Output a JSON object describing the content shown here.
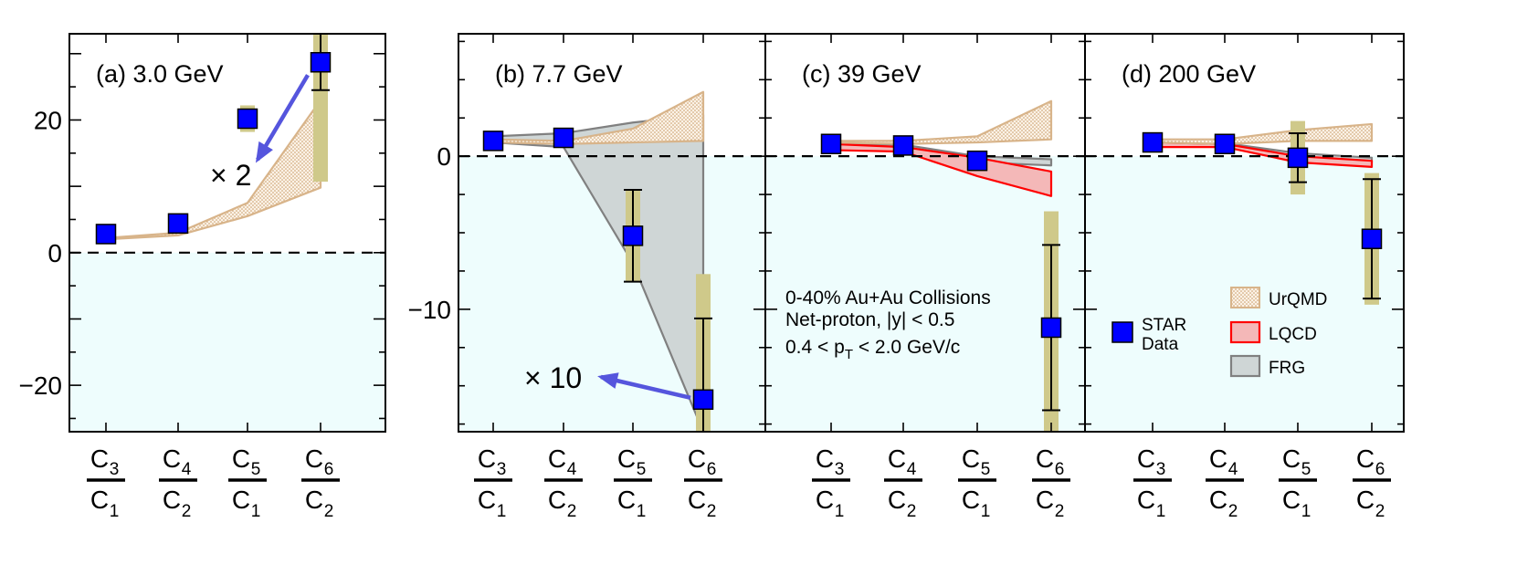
{
  "chart_data": {
    "type": "scatter",
    "description_labels": {
      "x_ratios": [
        {
          "num": "C",
          "num_sub": "3",
          "den": "C",
          "den_sub": "1"
        },
        {
          "num": "C",
          "num_sub": "4",
          "den": "C",
          "den_sub": "2"
        },
        {
          "num": "C",
          "num_sub": "5",
          "den": "C",
          "den_sub": "1"
        },
        {
          "num": "C",
          "num_sub": "6",
          "den": "C",
          "den_sub": "2"
        }
      ]
    },
    "info_text": {
      "line1": "0-40% Au+Au Collisions",
      "line2": "Net-proton, |y| < 0.5",
      "line3_pre": "0.4 < p",
      "line3_sub": "T",
      "line3_post": " < 2.0 GeV/c"
    },
    "legend": {
      "star": {
        "line1": "STAR",
        "line2": "Data"
      },
      "urqmd": "UrQMD",
      "lqcd": "LQCD",
      "frg": "FRG"
    },
    "colors": {
      "marker": "#0000ff",
      "syst": "#cfc98a",
      "urqmd": "#d8b48a",
      "lqcd_fill": "#f4b8b8",
      "lqcd_edge": "#ff0000",
      "frg_fill": "#cfd6d6",
      "frg_edge": "#808080",
      "negative_region": "#eefdfd",
      "annotation": "#5555dd"
    },
    "panels": [
      {
        "label": "(a) 3.0 GeV",
        "ylim": [
          -27,
          33
        ],
        "yticks_labeled": [
          -20,
          0,
          20
        ],
        "ytick_labels": [
          "−20",
          "0",
          "20"
        ],
        "points": [
          2.8,
          4.4,
          20.2,
          28.7
        ],
        "stat_err": [
          0.3,
          0.3,
          0.6,
          4.2
        ],
        "syst_err": [
          0.4,
          0.5,
          2.0,
          18.0
        ],
        "urqmd_band": {
          "lower": [
            2.0,
            2.6,
            5.5,
            9.8
          ],
          "upper": [
            2.2,
            3.0,
            7.5,
            23.0
          ]
        },
        "annotation": {
          "text": "× 2",
          "arrow_from_index": 3
        }
      },
      {
        "label": "(b) 7.7 GeV",
        "ylim": [
          -18,
          8
        ],
        "yticks_labeled": [
          -10,
          0
        ],
        "ytick_labels": [
          "−10",
          "0"
        ],
        "points": [
          1.0,
          1.2,
          -5.2,
          -15.9
        ],
        "stat_err": [
          0.3,
          0.3,
          3.0,
          5.3
        ],
        "syst_err": [
          0.4,
          0.4,
          3.0,
          8.2
        ],
        "urqmd_band": {
          "lower": [
            0.9,
            0.8,
            0.9,
            1.0
          ],
          "upper": [
            1.1,
            1.0,
            1.8,
            4.2
          ]
        },
        "frg_band": {
          "lower": [
            0.9,
            0.6,
            -7.0,
            -18.0
          ],
          "upper": [
            1.3,
            1.5,
            2.2,
            2.7
          ]
        },
        "annotation": {
          "text": "× 10",
          "arrow_from_index": 3
        }
      },
      {
        "label": "(c) 39 GeV",
        "ylim": [
          -18,
          8
        ],
        "yticks_labeled": [],
        "ytick_labels": [],
        "points": [
          0.8,
          0.7,
          -0.3,
          -11.2
        ],
        "stat_err": [
          0.15,
          0.15,
          0.3,
          5.4
        ],
        "syst_err": [
          0.2,
          0.2,
          0.35,
          7.6
        ],
        "urqmd_band": {
          "lower": [
            0.9,
            0.8,
            0.9,
            1.1
          ],
          "upper": [
            1.0,
            1.0,
            1.3,
            3.6
          ]
        },
        "lqcd_band": {
          "lower": [
            0.4,
            0.3,
            -1.3,
            -2.6
          ],
          "upper": [
            0.8,
            0.6,
            -0.1,
            -1.0
          ]
        },
        "frg_band": {
          "lower": [
            0.75,
            0.6,
            -0.4,
            -0.6
          ],
          "upper": [
            0.85,
            0.75,
            0.0,
            -0.2
          ]
        }
      },
      {
        "label": "(d) 200 GeV",
        "ylim": [
          -18,
          8
        ],
        "yticks_labeled": [],
        "ytick_labels": [],
        "points": [
          0.9,
          0.8,
          -0.1,
          -5.4
        ],
        "stat_err": [
          0.2,
          0.2,
          1.6,
          3.9
        ],
        "syst_err": [
          0.3,
          0.3,
          2.4,
          4.3
        ],
        "urqmd_band": {
          "lower": [
            0.9,
            0.8,
            1.0,
            1.0
          ],
          "upper": [
            1.1,
            1.1,
            1.7,
            2.1
          ]
        },
        "lqcd_band": {
          "lower": [
            0.6,
            0.6,
            -0.4,
            -0.7
          ],
          "upper": [
            0.9,
            0.8,
            0.0,
            -0.3
          ]
        },
        "frg_band": {
          "lower": [
            0.7,
            0.7,
            -0.1,
            -0.4
          ],
          "upper": [
            0.9,
            0.85,
            0.2,
            -0.1
          ]
        }
      }
    ]
  }
}
